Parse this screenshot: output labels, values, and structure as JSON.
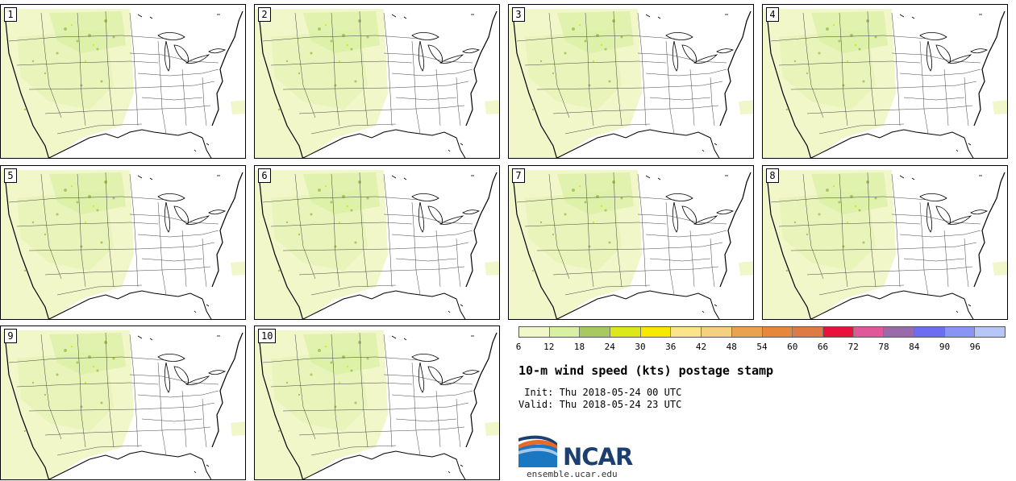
{
  "stamps": [
    {
      "label": "1"
    },
    {
      "label": "2"
    },
    {
      "label": "3"
    },
    {
      "label": "4"
    },
    {
      "label": "5"
    },
    {
      "label": "6"
    },
    {
      "label": "7"
    },
    {
      "label": "8"
    },
    {
      "label": "9"
    },
    {
      "label": "10"
    }
  ],
  "colorbar": {
    "colors": [
      "#f1f7c9",
      "#d8f0a1",
      "#a8c862",
      "#dce81a",
      "#f7ea00",
      "#fce48a",
      "#f5d081",
      "#e9a24f",
      "#e5883b",
      "#dd7a45",
      "#e8113c",
      "#e0579a",
      "#9a6aaa",
      "#6b6ef0",
      "#8a94f4",
      "#b6c6f6"
    ],
    "ticks": [
      "6",
      "12",
      "18",
      "24",
      "30",
      "36",
      "42",
      "48",
      "54",
      "60",
      "66",
      "72",
      "78",
      "84",
      "90",
      "96"
    ],
    "ticks_shown_count": 16
  },
  "title": "10-m wind speed (kts) postage stamp",
  "init": " Init: Thu 2018-05-24 00 UTC",
  "valid": "Valid: Thu 2018-05-24 23 UTC",
  "logo": {
    "text": "NCAR",
    "url": "ensemble.ucar.edu"
  },
  "colors": {
    "fill_light": "#f1f7c9",
    "fill_mid": "#d8f0a1",
    "fill_dark": "#a8c862",
    "line": "#444444"
  }
}
